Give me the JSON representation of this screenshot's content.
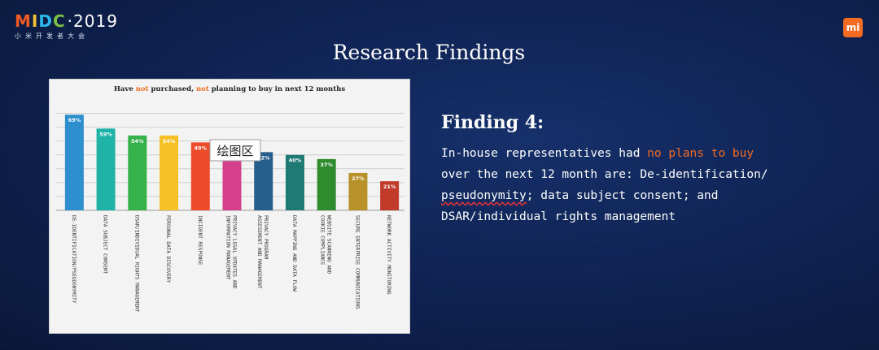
{
  "header": {
    "logo_letters": [
      "M",
      "I",
      "D",
      "C"
    ],
    "logo_year": "·2019",
    "logo_subtitle": "小米开发者大会",
    "mi_logo": "mi"
  },
  "slide": {
    "title": "Research Findings"
  },
  "finding": {
    "title": "Finding 4:",
    "text_before": "In-house representatives had ",
    "highlight": "no plans to buy",
    "text_after_1": " over the next 12 month are: De-identification/ ",
    "underlined": "pseudonymity",
    "text_after_2": "; data subject consent; and DSAR/individual rights management"
  },
  "overlay_label": "绘图区",
  "chart_data": {
    "type": "bar",
    "title_parts": [
      {
        "text": "Have ",
        "color": "#222222"
      },
      {
        "text": "not",
        "color": "#f36b21"
      },
      {
        "text": " purchased, ",
        "color": "#222222"
      },
      {
        "text": "not",
        "color": "#f36b21"
      },
      {
        "text": " planning to buy in next 12 months",
        "color": "#222222"
      }
    ],
    "ylim": [
      0,
      75
    ],
    "grid": true,
    "bars": [
      {
        "category": "DE-IDENTIFICATION/PSEUDONYMITY",
        "value": 69,
        "label": "69%",
        "color": "#2e8fcf"
      },
      {
        "category": "DATA SUBJECT CONSENT",
        "value": 59,
        "label": "59%",
        "color": "#1fb3a8"
      },
      {
        "category": "DSAR/INDIVIDUAL RIGHTS MANAGEMENT",
        "value": 54,
        "label": "54%",
        "color": "#35b34a"
      },
      {
        "category": "PERSONAL DATA DISCOVERY",
        "value": 54,
        "label": "54%",
        "color": "#f6c125"
      },
      {
        "category": "INCIDENT RESPONSE",
        "value": 49,
        "label": "49%",
        "color": "#ee4b2b"
      },
      {
        "category": "PRIVACY LEGAL UPDATES AND INFORMATION MANAGEMENT",
        "value": 45,
        "label": "",
        "color": "#d63f8c"
      },
      {
        "category": "PRIVACY PROGRAM ASSESSMENT AND MANAGEMENT",
        "value": 42,
        "label": "42%",
        "color": "#265f8c"
      },
      {
        "category": "DATA MAPPING AND DATA FLOW",
        "value": 40,
        "label": "40%",
        "color": "#1f7a75"
      },
      {
        "category": "WEBSITE SCANNING AND COOKIE COMPLIANCE",
        "value": 37,
        "label": "37%",
        "color": "#2e8b2e"
      },
      {
        "category": "SECURE ENTERPRISE COMMUNICATIONS",
        "value": 27,
        "label": "27%",
        "color": "#b8912a"
      },
      {
        "category": "NETWORK ACTIVITY MONITORING",
        "value": 21,
        "label": "21%",
        "color": "#c23a2a"
      }
    ]
  }
}
